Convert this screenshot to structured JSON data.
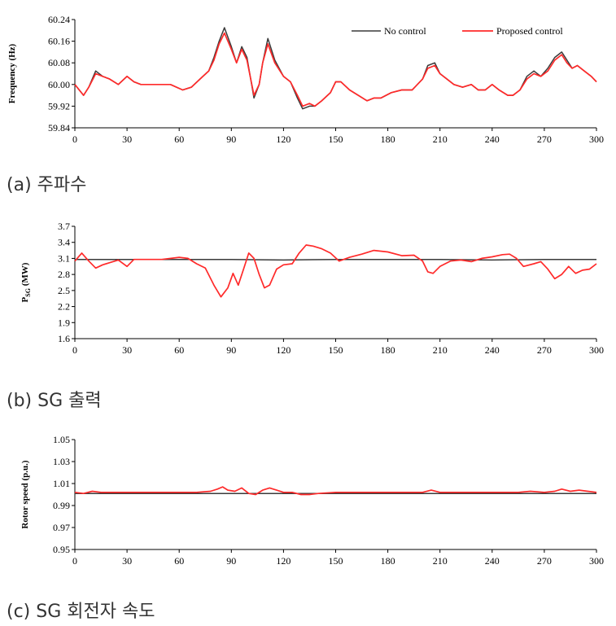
{
  "colors": {
    "no_control": "#3a3a3a",
    "proposed": "#ff2a2a",
    "axis": "#000000"
  },
  "legend": {
    "no_control_label": "No control",
    "proposed_label": "Proposed control"
  },
  "captions": [
    "(a) 주파수",
    "(b) SG 출력",
    "(c) SG 회전자 속도"
  ],
  "chart_data": [
    {
      "type": "line",
      "ylabel": "Frequency (Hz)",
      "xlim": [
        0,
        300
      ],
      "ylim": [
        59.84,
        60.24
      ],
      "yticks": [
        "59.84",
        "59.92",
        "60.00",
        "60.08",
        "60.16",
        "60.24"
      ],
      "xticks": [
        "0",
        "30",
        "60",
        "90",
        "120",
        "150",
        "180",
        "210",
        "240",
        "270",
        "300"
      ],
      "legend_position": "top-right",
      "series": [
        {
          "name": "No control",
          "x": [
            0,
            5,
            8,
            12,
            16,
            20,
            25,
            30,
            34,
            38,
            45,
            55,
            62,
            67,
            72,
            77,
            80,
            83,
            86,
            90,
            93,
            96,
            99,
            103,
            106,
            108,
            111,
            115,
            120,
            124,
            128,
            131,
            135,
            138,
            142,
            147,
            150,
            153,
            158,
            163,
            168,
            172,
            176,
            182,
            188,
            194,
            200,
            203,
            207,
            210,
            214,
            218,
            223,
            228,
            232,
            236,
            240,
            244,
            249,
            252,
            256,
            260,
            264,
            268,
            272,
            276,
            280,
            283,
            286,
            289,
            293,
            297,
            300
          ],
          "y": [
            60.0,
            59.96,
            59.99,
            60.05,
            60.03,
            60.02,
            60.0,
            60.03,
            60.01,
            60.0,
            60.0,
            60.0,
            59.98,
            59.99,
            60.02,
            60.05,
            60.1,
            60.16,
            60.21,
            60.14,
            60.08,
            60.14,
            60.1,
            59.95,
            60.0,
            60.08,
            60.17,
            60.09,
            60.03,
            60.01,
            59.95,
            59.91,
            59.92,
            59.92,
            59.94,
            59.97,
            60.01,
            60.01,
            59.98,
            59.96,
            59.94,
            59.95,
            59.95,
            59.97,
            59.98,
            59.98,
            60.02,
            60.07,
            60.08,
            60.04,
            60.02,
            60.0,
            59.99,
            60.0,
            59.98,
            59.98,
            60.0,
            59.98,
            59.96,
            59.96,
            59.98,
            60.03,
            60.05,
            60.03,
            60.06,
            60.1,
            60.12,
            60.09,
            60.06,
            60.07,
            60.05,
            60.03,
            60.01
          ]
        },
        {
          "name": "Proposed control",
          "x": [
            0,
            5,
            8,
            12,
            16,
            20,
            25,
            30,
            34,
            38,
            45,
            55,
            62,
            67,
            72,
            77,
            80,
            83,
            86,
            90,
            93,
            96,
            99,
            103,
            106,
            108,
            111,
            115,
            120,
            124,
            128,
            131,
            135,
            138,
            142,
            147,
            150,
            153,
            158,
            163,
            168,
            172,
            176,
            182,
            188,
            194,
            200,
            203,
            207,
            210,
            214,
            218,
            223,
            228,
            232,
            236,
            240,
            244,
            249,
            252,
            256,
            260,
            264,
            268,
            272,
            276,
            280,
            283,
            286,
            289,
            293,
            297,
            300
          ],
          "y": [
            60.0,
            59.96,
            59.99,
            60.04,
            60.03,
            60.02,
            60.0,
            60.03,
            60.01,
            60.0,
            60.0,
            60.0,
            59.98,
            59.99,
            60.02,
            60.05,
            60.09,
            60.15,
            60.19,
            60.13,
            60.08,
            60.13,
            60.09,
            59.96,
            60.0,
            60.08,
            60.15,
            60.08,
            60.03,
            60.01,
            59.96,
            59.92,
            59.93,
            59.92,
            59.94,
            59.97,
            60.01,
            60.01,
            59.98,
            59.96,
            59.94,
            59.95,
            59.95,
            59.97,
            59.98,
            59.98,
            60.02,
            60.06,
            60.07,
            60.04,
            60.02,
            60.0,
            59.99,
            60.0,
            59.98,
            59.98,
            60.0,
            59.98,
            59.96,
            59.96,
            59.98,
            60.02,
            60.04,
            60.03,
            60.05,
            60.09,
            60.11,
            60.08,
            60.06,
            60.07,
            60.05,
            60.03,
            60.01
          ]
        }
      ]
    },
    {
      "type": "line",
      "ylabel": "P_SG (MW)",
      "xlim": [
        0,
        300
      ],
      "ylim": [
        1.6,
        3.7
      ],
      "yticks": [
        "1.6",
        "1.9",
        "2.2",
        "2.5",
        "2.8",
        "3.1",
        "3.4",
        "3.7"
      ],
      "xticks": [
        "0",
        "30",
        "60",
        "90",
        "120",
        "150",
        "180",
        "210",
        "240",
        "270",
        "300"
      ],
      "series": [
        {
          "name": "No control",
          "x": [
            0,
            30,
            60,
            90,
            120,
            150,
            180,
            210,
            240,
            270,
            300
          ],
          "y": [
            3.08,
            3.08,
            3.08,
            3.08,
            3.07,
            3.08,
            3.08,
            3.08,
            3.07,
            3.08,
            3.08
          ]
        },
        {
          "name": "Proposed control",
          "x": [
            0,
            4,
            8,
            12,
            16,
            20,
            25,
            30,
            34,
            40,
            50,
            60,
            65,
            70,
            75,
            80,
            84,
            88,
            91,
            94,
            97,
            100,
            103,
            106,
            109,
            112,
            116,
            120,
            125,
            129,
            133,
            137,
            142,
            147,
            152,
            158,
            165,
            172,
            180,
            188,
            195,
            200,
            203,
            206,
            210,
            216,
            222,
            228,
            234,
            240,
            246,
            250,
            254,
            258,
            264,
            268,
            272,
            276,
            280,
            284,
            288,
            292,
            296,
            300
          ],
          "y": [
            3.05,
            3.2,
            3.05,
            2.92,
            2.98,
            3.02,
            3.07,
            2.95,
            3.08,
            3.08,
            3.08,
            3.12,
            3.1,
            3.0,
            2.92,
            2.6,
            2.38,
            2.55,
            2.82,
            2.6,
            2.9,
            3.2,
            3.1,
            2.8,
            2.55,
            2.6,
            2.9,
            2.98,
            3.0,
            3.2,
            3.35,
            3.33,
            3.28,
            3.2,
            3.05,
            3.12,
            3.18,
            3.25,
            3.22,
            3.15,
            3.16,
            3.05,
            2.85,
            2.82,
            2.95,
            3.05,
            3.07,
            3.04,
            3.1,
            3.13,
            3.17,
            3.18,
            3.1,
            2.95,
            3.0,
            3.04,
            2.9,
            2.72,
            2.8,
            2.95,
            2.82,
            2.88,
            2.9,
            3.0
          ]
        }
      ]
    },
    {
      "type": "line",
      "ylabel": "Rotor speed (p.u.)",
      "xlim": [
        0,
        300
      ],
      "ylim": [
        0.95,
        1.05
      ],
      "yticks": [
        "0.95",
        "0.97",
        "0.99",
        "1.01",
        "1.03",
        "1.05"
      ],
      "xticks": [
        "0",
        "30",
        "60",
        "90",
        "120",
        "150",
        "180",
        "210",
        "240",
        "270",
        "300"
      ],
      "series": [
        {
          "name": "No control",
          "x": [
            0,
            30,
            60,
            90,
            120,
            150,
            180,
            210,
            240,
            270,
            300
          ],
          "y": [
            1.001,
            1.001,
            1.001,
            1.001,
            1.001,
            1.001,
            1.001,
            1.001,
            1.001,
            1.001,
            1.001
          ]
        },
        {
          "name": "Proposed control",
          "x": [
            0,
            5,
            10,
            15,
            20,
            30,
            40,
            60,
            70,
            78,
            82,
            85,
            88,
            92,
            96,
            100,
            104,
            108,
            112,
            116,
            120,
            125,
            130,
            135,
            140,
            150,
            160,
            180,
            200,
            205,
            210,
            220,
            240,
            255,
            262,
            270,
            276,
            280,
            285,
            290,
            295,
            300
          ],
          "y": [
            1.002,
            1.001,
            1.003,
            1.002,
            1.002,
            1.002,
            1.002,
            1.002,
            1.002,
            1.003,
            1.005,
            1.007,
            1.004,
            1.003,
            1.006,
            1.001,
            1.0,
            1.004,
            1.006,
            1.004,
            1.002,
            1.002,
            1.0,
            1.0,
            1.001,
            1.002,
            1.002,
            1.002,
            1.002,
            1.004,
            1.002,
            1.002,
            1.002,
            1.002,
            1.003,
            1.002,
            1.003,
            1.005,
            1.003,
            1.004,
            1.003,
            1.002
          ]
        }
      ]
    }
  ]
}
